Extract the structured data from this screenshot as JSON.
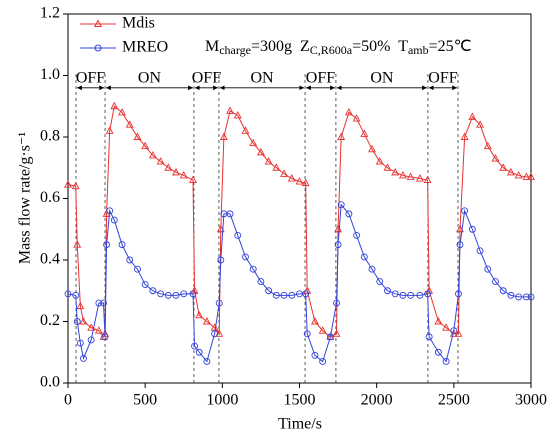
{
  "chart_data": {
    "type": "line",
    "xlabel": "Time/s",
    "ylabel": "Mass flow rate/g·s⁻¹",
    "x": [
      0,
      50,
      60,
      80,
      100,
      150,
      200,
      230,
      240,
      250,
      270,
      300,
      350,
      400,
      450,
      500,
      550,
      600,
      650,
      700,
      750,
      810,
      820,
      850,
      900,
      950,
      980,
      990,
      1010,
      1050,
      1100,
      1150,
      1200,
      1250,
      1300,
      1350,
      1400,
      1450,
      1500,
      1540,
      1550,
      1600,
      1650,
      1700,
      1740,
      1750,
      1770,
      1820,
      1870,
      1920,
      1970,
      2020,
      2070,
      2120,
      2170,
      2220,
      2280,
      2330,
      2340,
      2400,
      2450,
      2500,
      2530,
      2540,
      2570,
      2620,
      2670,
      2720,
      2770,
      2820,
      2870,
      2920,
      2970,
      3000
    ],
    "series": [
      {
        "name": "Mdis",
        "color": "#e8312f",
        "marker": "triangle",
        "values": [
          0.645,
          0.64,
          0.45,
          0.25,
          0.2,
          0.18,
          0.17,
          0.15,
          0.16,
          0.55,
          0.82,
          0.9,
          0.88,
          0.84,
          0.8,
          0.77,
          0.74,
          0.72,
          0.7,
          0.685,
          0.675,
          0.66,
          0.3,
          0.22,
          0.2,
          0.18,
          0.16,
          0.5,
          0.8,
          0.885,
          0.87,
          0.82,
          0.78,
          0.75,
          0.72,
          0.7,
          0.68,
          0.665,
          0.655,
          0.65,
          0.3,
          0.2,
          0.17,
          0.15,
          0.16,
          0.5,
          0.8,
          0.88,
          0.86,
          0.81,
          0.76,
          0.72,
          0.7,
          0.685,
          0.675,
          0.67,
          0.665,
          0.66,
          0.3,
          0.2,
          0.18,
          0.16,
          0.16,
          0.5,
          0.8,
          0.865,
          0.84,
          0.77,
          0.73,
          0.7,
          0.685,
          0.675,
          0.67,
          0.67
        ]
      },
      {
        "name": "MREO",
        "color": "#3344dd",
        "marker": "circle",
        "values": [
          0.29,
          0.285,
          0.2,
          0.13,
          0.08,
          0.14,
          0.26,
          0.26,
          0.15,
          0.45,
          0.56,
          0.53,
          0.45,
          0.4,
          0.37,
          0.32,
          0.3,
          0.29,
          0.285,
          0.285,
          0.29,
          0.29,
          0.12,
          0.1,
          0.07,
          0.16,
          0.26,
          0.4,
          0.55,
          0.55,
          0.48,
          0.41,
          0.37,
          0.33,
          0.3,
          0.285,
          0.285,
          0.285,
          0.29,
          0.29,
          0.16,
          0.09,
          0.07,
          0.15,
          0.26,
          0.45,
          0.58,
          0.55,
          0.48,
          0.41,
          0.37,
          0.33,
          0.3,
          0.29,
          0.285,
          0.285,
          0.285,
          0.29,
          0.15,
          0.1,
          0.07,
          0.17,
          0.29,
          0.45,
          0.56,
          0.5,
          0.43,
          0.37,
          0.33,
          0.3,
          0.285,
          0.28,
          0.28,
          0.28
        ]
      }
    ],
    "xlim": [
      0,
      3000
    ],
    "xticks": [
      0,
      500,
      1000,
      1500,
      2000,
      2500,
      3000
    ],
    "ylim": [
      0,
      1.2
    ],
    "yticks": [
      {
        "value": 0,
        "label": "0.0"
      },
      0.2,
      0.4,
      0.6,
      0.8,
      {
        "value": 1,
        "label": "1.0"
      },
      1.2
    ],
    "legend": "upper left",
    "annotation_parts": [
      {
        "text": "M"
      },
      {
        "text": "charge",
        "sub": true
      },
      {
        "text": "=300g  Z"
      },
      {
        "text": "C,R600a",
        "sub": true
      },
      {
        "text": "=50%  T"
      },
      {
        "text": "amb",
        "sub": true
      },
      {
        "text": "=25℃"
      }
    ],
    "phase_y": 0.96,
    "phases": [
      {
        "label": "OFF",
        "start": 52,
        "end": 240
      },
      {
        "label": "ON",
        "start": 240,
        "end": 816
      },
      {
        "label": "OFF",
        "start": 816,
        "end": 978
      },
      {
        "label": "ON",
        "start": 978,
        "end": 1536
      },
      {
        "label": "OFF",
        "start": 1536,
        "end": 1736
      },
      {
        "label": "ON",
        "start": 1736,
        "end": 2332
      },
      {
        "label": "OFF",
        "start": 2332,
        "end": 2527
      }
    ]
  }
}
